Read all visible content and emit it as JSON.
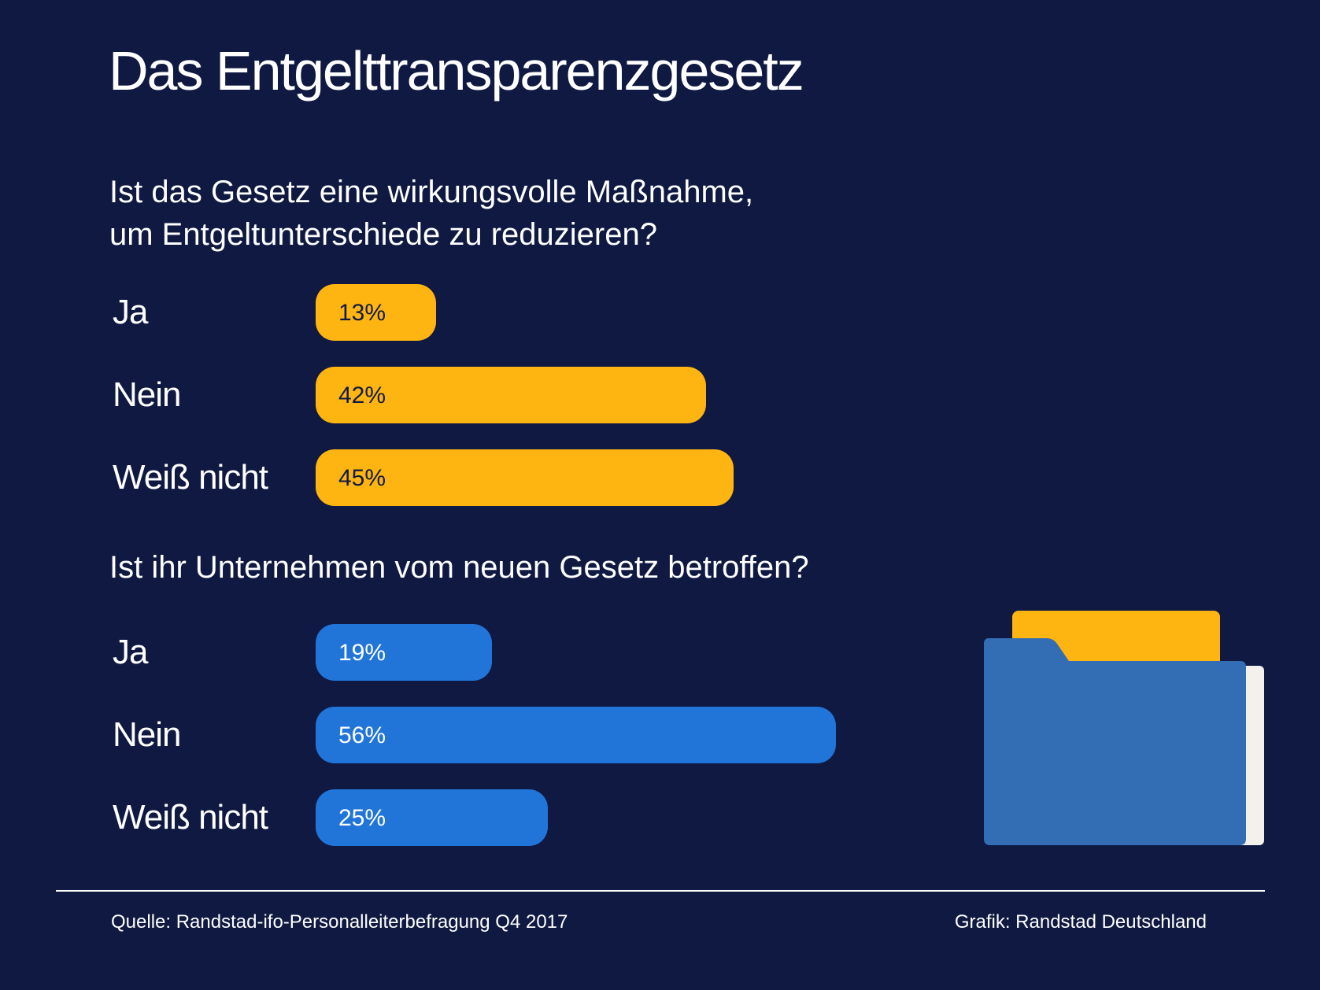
{
  "title": "Das Entgelttransparenzgesetz",
  "colors": {
    "background": "#0f1941",
    "bar_yellow": "#ffb511",
    "bar_blue": "#2175d9",
    "folder_blue": "#336eb5"
  },
  "chart_data": [
    {
      "type": "bar",
      "orientation": "horizontal",
      "title": "Ist das Gesetz eine wirkungsvolle Maßnahme,\num Entgeltunterschiede zu reduzieren?",
      "categories": [
        "Ja",
        "Nein",
        "Weiß nicht"
      ],
      "values": [
        13,
        42,
        45
      ],
      "value_labels": [
        "13%",
        "42%",
        "45%"
      ],
      "unit": "%",
      "color": "#ffb511"
    },
    {
      "type": "bar",
      "orientation": "horizontal",
      "title": "Ist ihr Unternehmen vom neuen Gesetz betroffen?",
      "categories": [
        "Ja",
        "Nein",
        "Weiß nicht"
      ],
      "values": [
        19,
        56,
        25
      ],
      "value_labels": [
        "19%",
        "56%",
        "25%"
      ],
      "unit": "%",
      "color": "#2175d9"
    }
  ],
  "footer": {
    "source": "Quelle: Randstad-ifo-Personalleiterbefragung Q4 2017",
    "credit": "Grafik: Randstad Deutschland"
  },
  "illustration": {
    "icon": "folder-icon"
  }
}
